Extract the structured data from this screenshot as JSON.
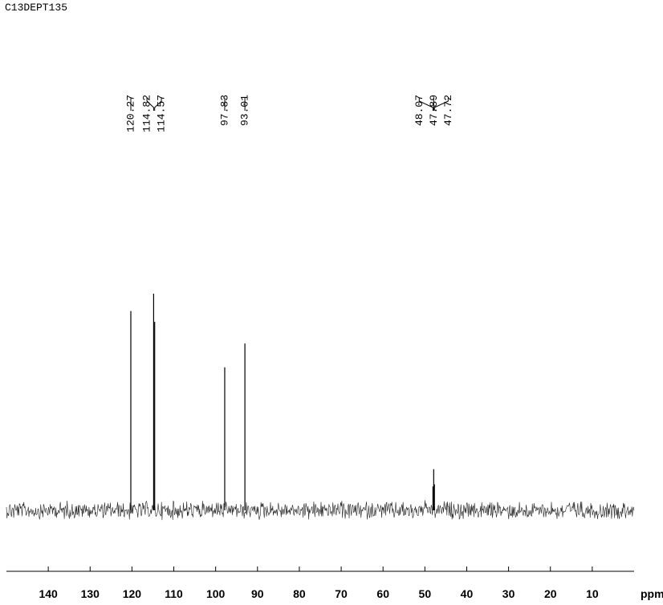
{
  "chart_data": {
    "type": "spectrum",
    "title": "C13DEPT135",
    "x": [
      120.27,
      114.82,
      114.57,
      97.83,
      93.01,
      48.07,
      47.89,
      47.72
    ],
    "values": [
      92,
      100,
      87,
      66,
      77,
      11,
      19,
      12
    ],
    "peak_labels": [
      "120.27",
      "114.82",
      "114.57",
      "97.83",
      "93.01",
      "48.07",
      "47.89",
      "47.72"
    ],
    "xlim": [
      150,
      0
    ],
    "xticks": [
      140,
      130,
      120,
      110,
      100,
      90,
      80,
      70,
      60,
      50,
      40,
      30,
      20,
      10
    ],
    "x_unit": "ppm",
    "color": "#000000"
  }
}
